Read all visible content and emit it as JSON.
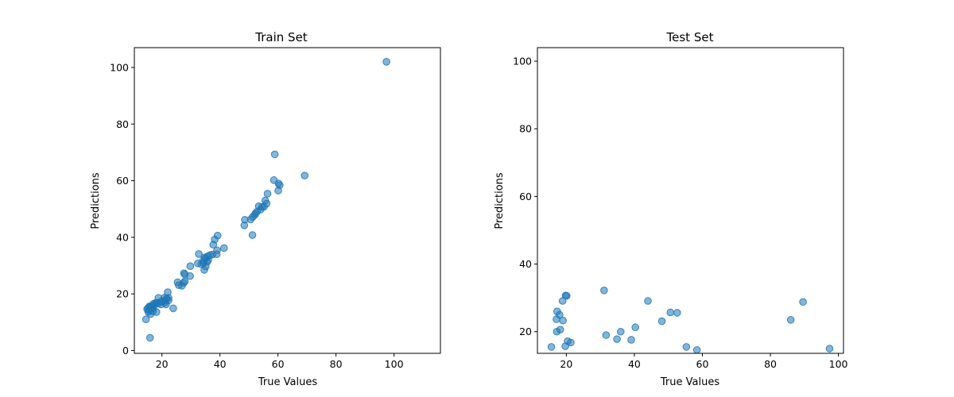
{
  "chart_data": [
    {
      "type": "scatter",
      "title": "Train Set",
      "xlabel": "True Values",
      "ylabel": "Predictions",
      "xlim": [
        10.5,
        116
      ],
      "ylim": [
        -1,
        107
      ],
      "xticks": [
        20,
        40,
        60,
        80,
        100
      ],
      "yticks": [
        0,
        20,
        40,
        60,
        80,
        100
      ],
      "point_color": "#1f77b4",
      "point_alpha": 0.55,
      "grid": false,
      "points": [
        [
          97.4,
          102
        ],
        [
          58.9,
          69.3
        ],
        [
          69.2,
          61.8
        ],
        [
          58.6,
          60.2
        ],
        [
          60.2,
          59.0
        ],
        [
          60.6,
          58.4
        ],
        [
          60.1,
          56.5
        ],
        [
          56.4,
          55.4
        ],
        [
          55.6,
          53.0
        ],
        [
          56.1,
          51.9
        ],
        [
          55.2,
          50.8
        ],
        [
          54.5,
          50.7
        ],
        [
          53.4,
          51.0
        ],
        [
          54.0,
          49.8
        ],
        [
          52.8,
          49.1
        ],
        [
          52.3,
          48.5
        ],
        [
          52.0,
          47.9
        ],
        [
          51.3,
          47.2
        ],
        [
          50.6,
          46.3
        ],
        [
          48.6,
          46.2
        ],
        [
          48.4,
          44.2
        ],
        [
          51.2,
          40.8
        ],
        [
          39.2,
          40.6
        ],
        [
          38.2,
          39.2
        ],
        [
          37.7,
          37.4
        ],
        [
          41.4,
          36.2
        ],
        [
          39.0,
          35.4
        ],
        [
          38.9,
          34.0
        ],
        [
          37.4,
          33.9
        ],
        [
          36.6,
          33.7
        ],
        [
          35.8,
          33.3
        ],
        [
          34.7,
          32.9
        ],
        [
          34.9,
          32.5
        ],
        [
          36.0,
          32.0
        ],
        [
          34.2,
          31.7
        ],
        [
          35.6,
          31.3
        ],
        [
          34.3,
          30.9
        ],
        [
          32.7,
          34.1
        ],
        [
          32.4,
          30.8
        ],
        [
          33.6,
          30.5
        ],
        [
          35.1,
          29.7
        ],
        [
          34.6,
          28.5
        ],
        [
          29.8,
          29.8
        ],
        [
          29.7,
          26.3
        ],
        [
          27.6,
          27.3
        ],
        [
          27.9,
          26.9
        ],
        [
          27.9,
          24.4
        ],
        [
          27.5,
          23.9
        ],
        [
          26.9,
          22.9
        ],
        [
          25.8,
          23.1
        ],
        [
          25.4,
          24.1
        ],
        [
          23.9,
          14.9
        ],
        [
          22.0,
          20.6
        ],
        [
          22.3,
          18.6
        ],
        [
          21.6,
          18.3
        ],
        [
          20.9,
          18.7
        ],
        [
          21.1,
          17.7
        ],
        [
          22.3,
          17.7
        ],
        [
          20.1,
          17.4
        ],
        [
          21.0,
          16.9
        ],
        [
          19.5,
          17.2
        ],
        [
          19.7,
          16.3
        ],
        [
          18.6,
          16.5
        ],
        [
          18.8,
          18.6
        ],
        [
          18.0,
          16.9
        ],
        [
          17.8,
          16.7
        ],
        [
          17.1,
          16.5
        ],
        [
          16.9,
          15.9
        ],
        [
          16.7,
          15.4
        ],
        [
          17.0,
          15.0
        ],
        [
          16.1,
          15.5
        ],
        [
          15.7,
          15.6
        ],
        [
          15.2,
          15.0
        ],
        [
          14.9,
          14.6
        ],
        [
          15.6,
          14.2
        ],
        [
          15.3,
          13.6
        ],
        [
          16.1,
          12.9
        ],
        [
          16.9,
          13.9
        ],
        [
          18.1,
          13.6
        ],
        [
          14.5,
          11.0
        ],
        [
          21.4,
          16.3
        ],
        [
          15.9,
          4.5
        ]
      ]
    },
    {
      "type": "scatter",
      "title": "Test Set",
      "xlabel": "True Values",
      "ylabel": "Predictions",
      "xlim": [
        11.5,
        101.5
      ],
      "ylim": [
        13.6,
        104
      ],
      "xticks": [
        20,
        40,
        60,
        80,
        100
      ],
      "yticks": [
        20,
        40,
        60,
        80,
        100
      ],
      "point_color": "#1f77b4",
      "point_alpha": 0.55,
      "grid": false,
      "points": [
        [
          31.1,
          32.2
        ],
        [
          19.8,
          30.7
        ],
        [
          20.1,
          30.6
        ],
        [
          18.9,
          29.1
        ],
        [
          44.0,
          29.1
        ],
        [
          89.6,
          28.8
        ],
        [
          17.3,
          26.0
        ],
        [
          18.0,
          25.0
        ],
        [
          50.6,
          25.7
        ],
        [
          52.6,
          25.6
        ],
        [
          17.1,
          23.7
        ],
        [
          19.0,
          23.3
        ],
        [
          48.1,
          23.1
        ],
        [
          86.0,
          23.5
        ],
        [
          18.2,
          20.6
        ],
        [
          17.2,
          20.0
        ],
        [
          36.0,
          20.0
        ],
        [
          40.3,
          21.3
        ],
        [
          31.7,
          19.0
        ],
        [
          34.9,
          17.8
        ],
        [
          39.1,
          17.6
        ],
        [
          20.4,
          17.2
        ],
        [
          21.3,
          16.8
        ],
        [
          19.7,
          15.7
        ],
        [
          15.6,
          15.5
        ],
        [
          55.3,
          15.5
        ],
        [
          58.4,
          14.6
        ],
        [
          97.4,
          15.0
        ]
      ]
    }
  ]
}
